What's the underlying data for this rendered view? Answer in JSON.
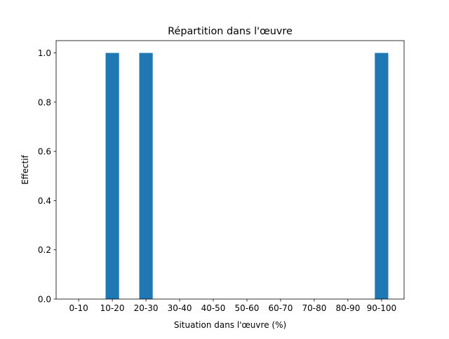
{
  "chart_data": {
    "type": "bar",
    "title": "Répartition dans l'œuvre",
    "xlabel": "Situation dans l'œuvre (%)",
    "ylabel": "Effectif",
    "categories": [
      "0-10",
      "10-20",
      "20-30",
      "30-40",
      "40-50",
      "50-60",
      "60-70",
      "70-80",
      "80-90",
      "90-100"
    ],
    "values": [
      0,
      1,
      1,
      0,
      0,
      0,
      0,
      0,
      0,
      1
    ],
    "ylim": [
      0,
      1.05
    ],
    "yticks": [
      "0.0",
      "0.2",
      "0.4",
      "0.6",
      "0.8",
      "1.0"
    ],
    "grid": false,
    "bar_color": "#1f77b4"
  }
}
